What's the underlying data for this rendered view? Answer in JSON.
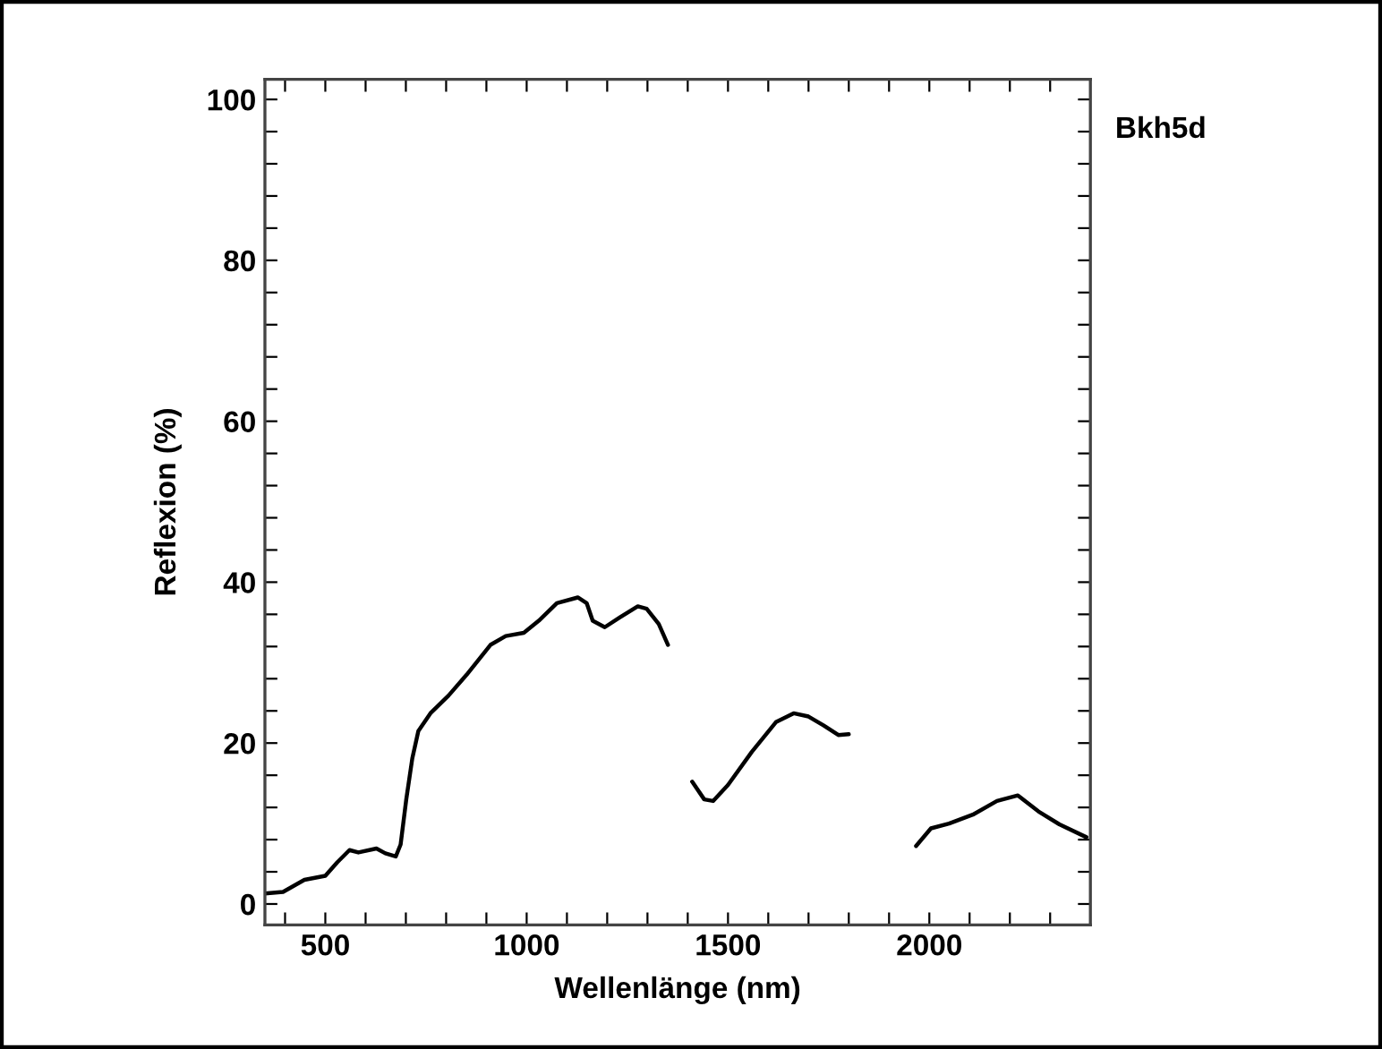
{
  "chart_data": {
    "type": "line",
    "xlabel": "Wellenlänge (nm)",
    "ylabel": "Reflexion (%)",
    "annotations": [
      "Bkh5d"
    ],
    "x": [
      350,
      395,
      448,
      500,
      530,
      560,
      582,
      627,
      649,
      675,
      687,
      701,
      716,
      731,
      761,
      806,
      851,
      910,
      948,
      993,
      1030,
      1075,
      1127,
      1149,
      1164,
      1194,
      1231,
      1276,
      1298,
      1328,
      1351,
      1380,
      1411,
      1441,
      1463,
      1500,
      1559,
      1619,
      1663,
      1700,
      1737,
      1774,
      1800,
      1880,
      1967,
      2004,
      2049,
      2108,
      2168,
      2220,
      2271,
      2323,
      2390
    ],
    "series": [
      {
        "color": "#000000",
        "values": [
          1.3,
          1.5,
          3.0,
          3.5,
          5.2,
          6.7,
          6.4,
          6.9,
          6.3,
          5.9,
          7.4,
          13,
          18.1,
          21.5,
          23.7,
          25.9,
          28.5,
          32.2,
          33.3,
          33.7,
          35.2,
          37.4,
          38.1,
          37.4,
          35.2,
          34.4,
          35.6,
          37.0,
          36.7,
          34.8,
          32.2,
          null,
          15.2,
          13.0,
          12.8,
          14.8,
          18.9,
          22.6,
          23.7,
          23.3,
          22.2,
          21.0,
          21.1,
          null,
          7.2,
          9.4,
          10.0,
          11.1,
          12.8,
          13.5,
          11.5,
          9.9,
          8.3
        ]
      }
    ],
    "xlim": [
      350,
      2400
    ],
    "ylim": [
      -2.6,
      102.5
    ],
    "xticks": [
      {
        "value": 400,
        "label": null
      },
      500,
      {
        "value": 600,
        "label": null
      },
      {
        "value": 700,
        "label": null
      },
      {
        "value": 800,
        "label": null
      },
      {
        "value": 900,
        "label": null
      },
      1000,
      {
        "value": 1100,
        "label": null
      },
      {
        "value": 1200,
        "label": null
      },
      {
        "value": 1300,
        "label": null
      },
      {
        "value": 1400,
        "label": null
      },
      1500,
      {
        "value": 1600,
        "label": null
      },
      {
        "value": 1700,
        "label": null
      },
      {
        "value": 1800,
        "label": null
      },
      {
        "value": 1900,
        "label": null
      },
      2000,
      {
        "value": 2100,
        "label": null
      },
      {
        "value": 2200,
        "label": null
      },
      {
        "value": 2300,
        "label": null
      }
    ],
    "yticks": [
      0,
      {
        "value": 4,
        "label": null
      },
      {
        "value": 8,
        "label": null
      },
      {
        "value": 12,
        "label": null
      },
      {
        "value": 16,
        "label": null
      },
      20,
      {
        "value": 24,
        "label": null
      },
      {
        "value": 28,
        "label": null
      },
      {
        "value": 32,
        "label": null
      },
      {
        "value": 36,
        "label": null
      },
      40,
      {
        "value": 44,
        "label": null
      },
      {
        "value": 48,
        "label": null
      },
      {
        "value": 52,
        "label": null
      },
      {
        "value": 56,
        "label": null
      },
      60,
      {
        "value": 64,
        "label": null
      },
      {
        "value": 68,
        "label": null
      },
      {
        "value": 72,
        "label": null
      },
      {
        "value": 76,
        "label": null
      },
      80,
      {
        "value": 84,
        "label": null
      },
      {
        "value": 88,
        "label": null
      },
      {
        "value": 92,
        "label": null
      },
      {
        "value": 96,
        "label": null
      },
      100
    ],
    "grid": false,
    "legend": false
  }
}
